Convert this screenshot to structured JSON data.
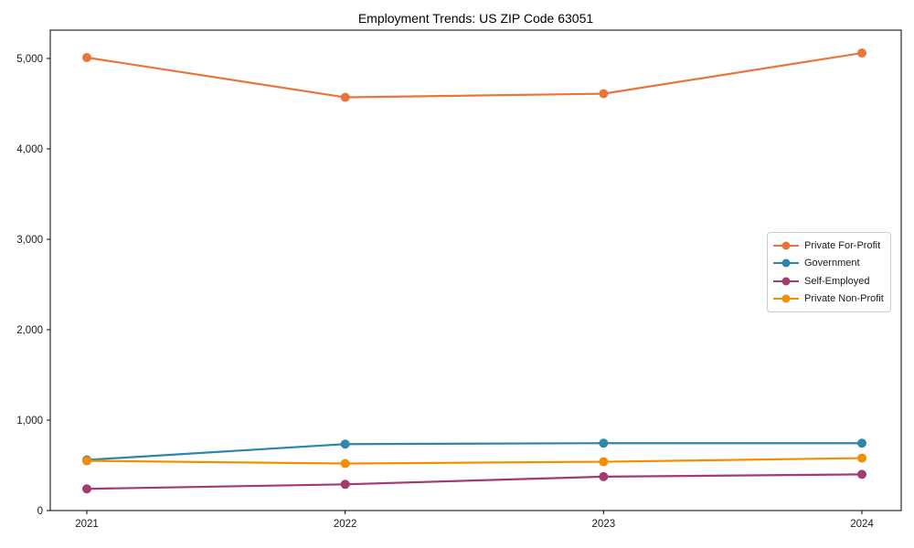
{
  "chart_data": {
    "type": "line",
    "title": "Employment Trends: US ZIP Code 63051",
    "xlabel": "",
    "ylabel": "",
    "x": [
      "2021",
      "2022",
      "2023",
      "2024"
    ],
    "series": [
      {
        "name": "Private For-Profit",
        "color": "#E8763B",
        "values": [
          5010,
          4570,
          4610,
          5060
        ]
      },
      {
        "name": "Government",
        "color": "#2E86AB",
        "values": [
          560,
          735,
          745,
          745
        ]
      },
      {
        "name": "Self-Employed",
        "color": "#A23B72",
        "values": [
          240,
          290,
          375,
          400
        ]
      },
      {
        "name": "Private Non-Profit",
        "color": "#F18F01",
        "values": [
          550,
          520,
          540,
          580
        ]
      }
    ],
    "ylim": [
      0,
      5313
    ],
    "yticks": [
      {
        "value": 0,
        "label": "0"
      },
      {
        "value": 1000,
        "label": "1,000"
      },
      {
        "value": 2000,
        "label": "2,000"
      },
      {
        "value": 3000,
        "label": "3,000"
      },
      {
        "value": 4000,
        "label": "4,000"
      },
      {
        "value": 5000,
        "label": "5,000"
      }
    ],
    "legend_position": "center-right",
    "grid": false,
    "frame": "closed-box",
    "marker": "circle"
  }
}
